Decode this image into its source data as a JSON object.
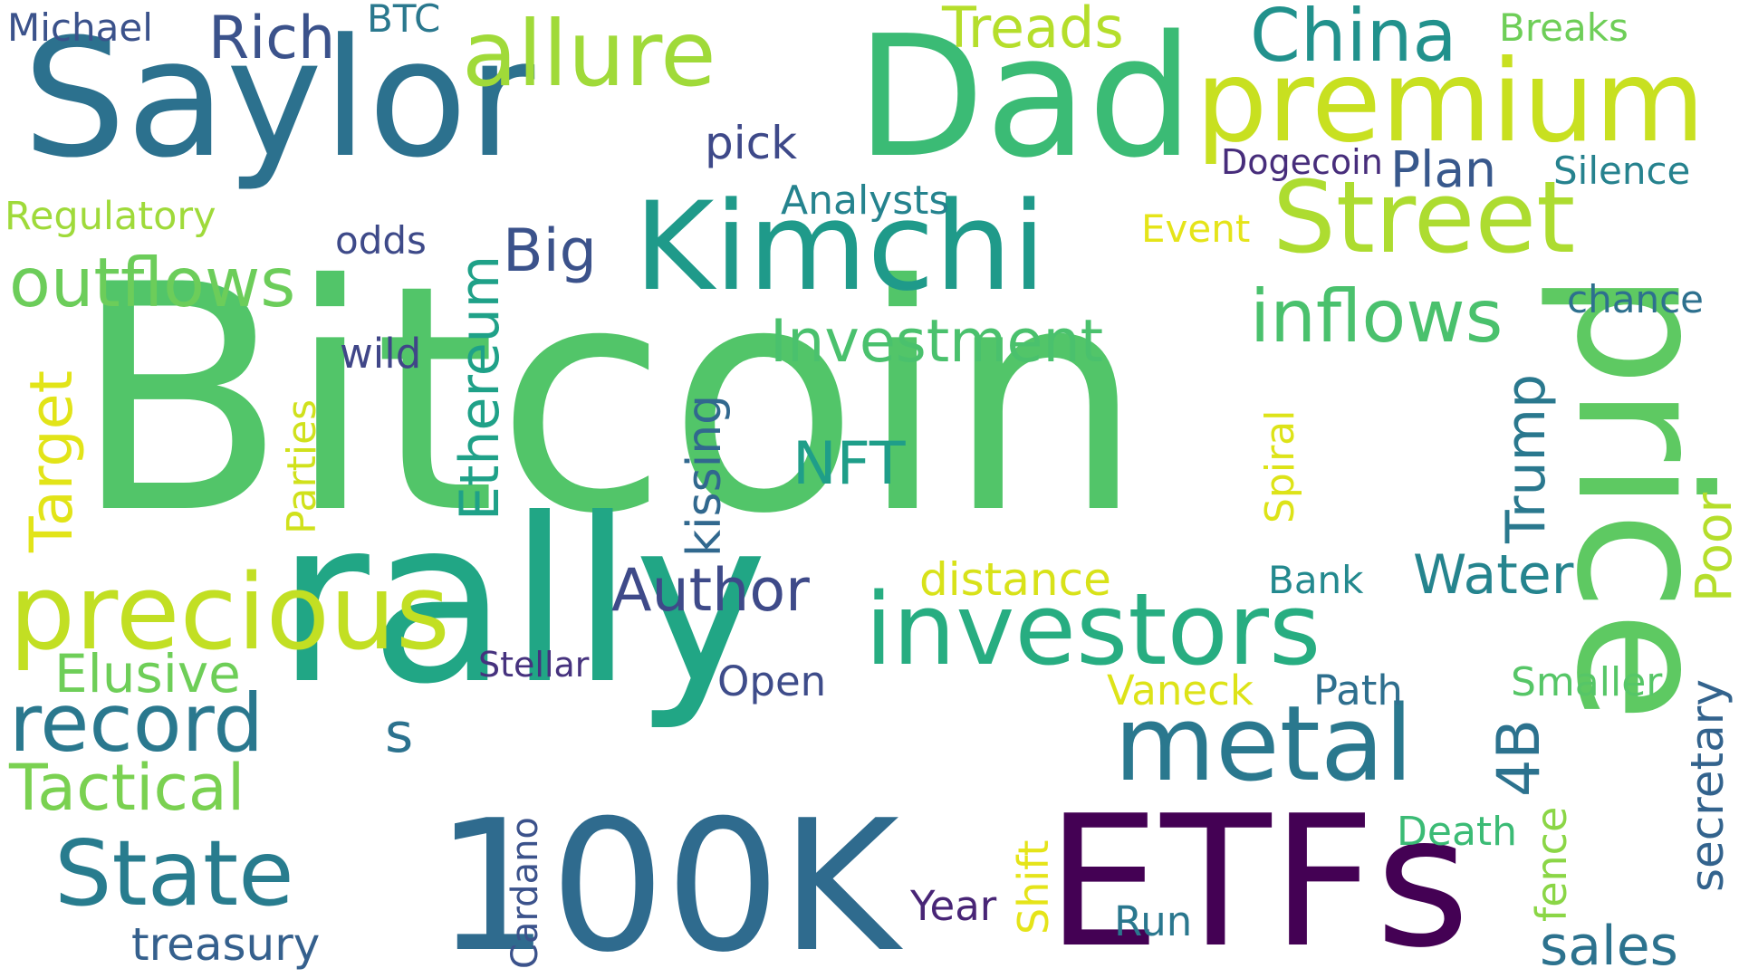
{
  "words": [
    {
      "text": "Bitcoin",
      "color": "#52c569",
      "rotate": false
    },
    {
      "text": "rally",
      "color": "#21a685",
      "rotate": false
    },
    {
      "text": "price",
      "color": "#5ec962",
      "rotate": true
    },
    {
      "text": "Saylor",
      "color": "#2c718e",
      "rotate": false
    },
    {
      "text": "Dad",
      "color": "#3bbb75",
      "rotate": false
    },
    {
      "text": "100K",
      "color": "#2f6b8e",
      "rotate": false
    },
    {
      "text": "ETFs",
      "color": "#440154",
      "rotate": false
    },
    {
      "text": "Kimchi",
      "color": "#1f9a8a",
      "rotate": false
    },
    {
      "text": "premium",
      "color": "#c8e020",
      "rotate": false
    },
    {
      "text": "investors",
      "color": "#27ad81",
      "rotate": false
    },
    {
      "text": "precious",
      "color": "#c2df23",
      "rotate": false
    },
    {
      "text": "Street",
      "color": "#addc30",
      "rotate": false
    },
    {
      "text": "metal",
      "color": "#2a788e",
      "rotate": false
    },
    {
      "text": "allure",
      "color": "#a0da39",
      "rotate": false
    },
    {
      "text": "record",
      "color": "#2a788e",
      "rotate": false
    },
    {
      "text": "State",
      "color": "#287c8e",
      "rotate": false
    },
    {
      "text": "inflows",
      "color": "#4ac16d",
      "rotate": false
    },
    {
      "text": "outflows",
      "color": "#6ccd5a",
      "rotate": false
    },
    {
      "text": "China",
      "color": "#21918c",
      "rotate": false
    },
    {
      "text": "Investment",
      "color": "#4ac16d",
      "rotate": false
    },
    {
      "text": "Author",
      "color": "#3e4a89",
      "rotate": false
    },
    {
      "text": "Tactical",
      "color": "#7ad151",
      "rotate": false
    },
    {
      "text": "Elusive",
      "color": "#6ece58",
      "rotate": false
    },
    {
      "text": "treasury",
      "color": "#35608d",
      "rotate": false
    },
    {
      "text": "Ethereum",
      "color": "#1fa188",
      "rotate": true
    },
    {
      "text": "Target",
      "color": "#e2e418",
      "rotate": true
    },
    {
      "text": "Trump",
      "color": "#2a788e",
      "rotate": true
    },
    {
      "text": "NFT",
      "color": "#1f9e89",
      "rotate": false
    },
    {
      "text": "Water",
      "color": "#25848e",
      "rotate": false
    },
    {
      "text": "Rich",
      "color": "#3b528b",
      "rotate": false
    },
    {
      "text": "Treads",
      "color": "#b5de2b",
      "rotate": false
    },
    {
      "text": "Big",
      "color": "#3b528b",
      "rotate": false
    },
    {
      "text": "sales",
      "color": "#2c728e",
      "rotate": false
    },
    {
      "text": "4B",
      "color": "#2c728e",
      "rotate": true
    },
    {
      "text": "Poor",
      "color": "#b5de2b",
      "rotate": true
    },
    {
      "text": "secretary",
      "color": "#33638d",
      "rotate": true
    },
    {
      "text": "Plan",
      "color": "#38588c",
      "rotate": false
    },
    {
      "text": "distance",
      "color": "#d8e219",
      "rotate": false
    },
    {
      "text": "pick",
      "color": "#3e4989",
      "rotate": false
    },
    {
      "text": "Analysts",
      "color": "#25838e",
      "rotate": false
    },
    {
      "text": "Regulatory",
      "color": "#9fda3a",
      "rotate": false
    },
    {
      "text": "Silence",
      "color": "#26828e",
      "rotate": false
    },
    {
      "text": "Breaks",
      "color": "#6ece58",
      "rotate": false
    },
    {
      "text": "Michael",
      "color": "#3b528b",
      "rotate": false
    },
    {
      "text": "BTC",
      "color": "#2a788e",
      "rotate": false
    },
    {
      "text": "Dogecoin",
      "color": "#472d7b",
      "rotate": false
    },
    {
      "text": "Event",
      "color": "#e5e419",
      "rotate": false
    },
    {
      "text": "chance",
      "color": "#2d708e",
      "rotate": false
    },
    {
      "text": "odds",
      "color": "#3e4a89",
      "rotate": false
    },
    {
      "text": "wild",
      "color": "#404688",
      "rotate": false
    },
    {
      "text": "Parties",
      "color": "#d0e11c",
      "rotate": true
    },
    {
      "text": "kissing",
      "color": "#31688e",
      "rotate": true
    },
    {
      "text": "Spiral",
      "color": "#dde318",
      "rotate": true
    },
    {
      "text": "Bank",
      "color": "#23898e",
      "rotate": false
    },
    {
      "text": "Stellar",
      "color": "#46327e",
      "rotate": false
    },
    {
      "text": "Open",
      "color": "#3e4c8a",
      "rotate": false
    },
    {
      "text": "Vaneck",
      "color": "#dde318",
      "rotate": false
    },
    {
      "text": "Path",
      "color": "#2e6f8e",
      "rotate": false
    },
    {
      "text": "Smaller",
      "color": "#56c667",
      "rotate": false
    },
    {
      "text": "Death",
      "color": "#3bbb75",
      "rotate": false
    },
    {
      "text": "fence",
      "color": "#8bd646",
      "rotate": true
    },
    {
      "text": "Year",
      "color": "#482576",
      "rotate": false
    },
    {
      "text": "Run",
      "color": "#2a778e",
      "rotate": false
    },
    {
      "text": "Shift",
      "color": "#e5e419",
      "rotate": true
    },
    {
      "text": "Cardano",
      "color": "#3b528b",
      "rotate": true
    },
    {
      "text": "s",
      "color": "#2c728e",
      "rotate": false
    }
  ]
}
